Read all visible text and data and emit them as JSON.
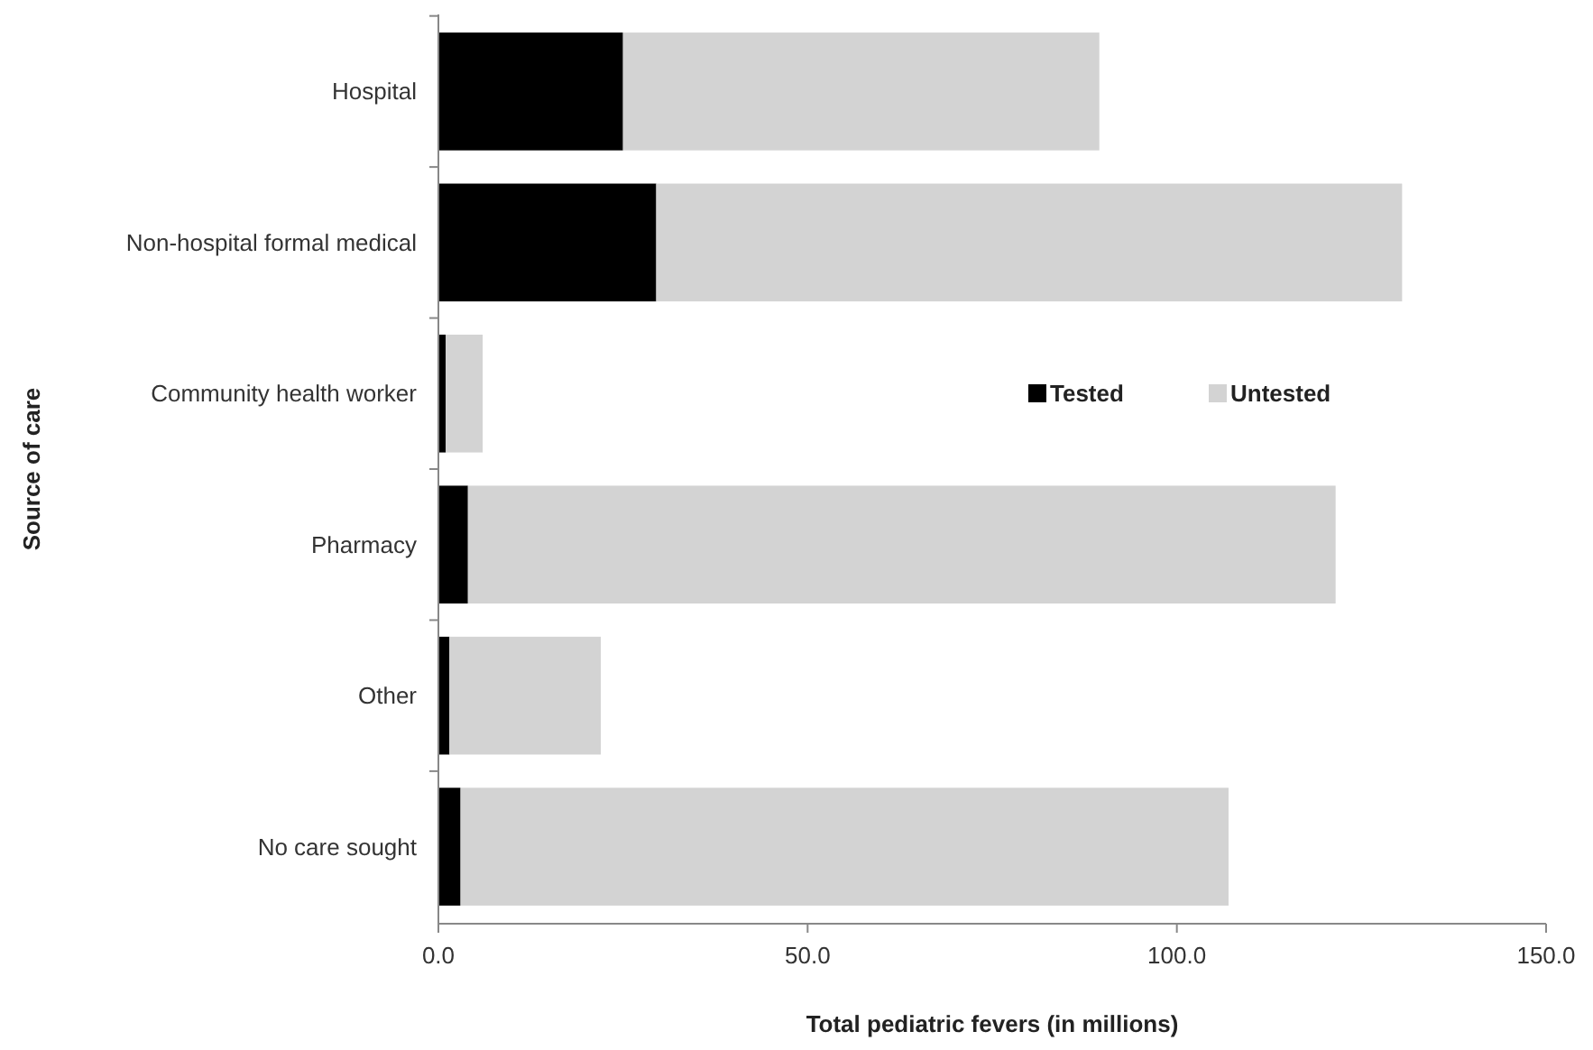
{
  "chart_data": {
    "type": "bar",
    "orientation": "horizontal",
    "stacked": true,
    "xlabel": "Total pediatric fevers (in millions)",
    "ylabel": "Source of care",
    "categories": [
      "Hospital",
      "Non-hospital formal medical",
      "Community health worker",
      "Pharmacy",
      "Other",
      "No care sought"
    ],
    "series": [
      {
        "name": "Tested",
        "color": "#000000",
        "values": [
          25,
          29.5,
          1,
          4,
          1.5,
          3
        ]
      },
      {
        "name": "Untested",
        "color": "#d3d3d3",
        "values": [
          64.5,
          101,
          5,
          117.5,
          20.5,
          104
        ]
      }
    ],
    "xlim": [
      0,
      150
    ],
    "xticks": [
      {
        "value": 0,
        "label": "0.0"
      },
      {
        "value": 50,
        "label": "50.0"
      },
      {
        "value": 100,
        "label": "100.0"
      },
      {
        "value": 150,
        "label": "150.0"
      }
    ],
    "grid": false,
    "legend": "right"
  }
}
